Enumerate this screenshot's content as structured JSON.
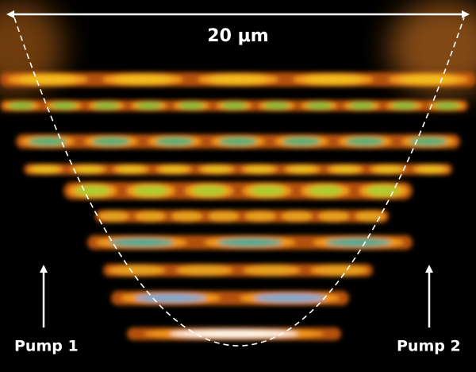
{
  "scale_label": "20 μm",
  "left_label": "Pump 1",
  "right_label": "Pump 2"
}
